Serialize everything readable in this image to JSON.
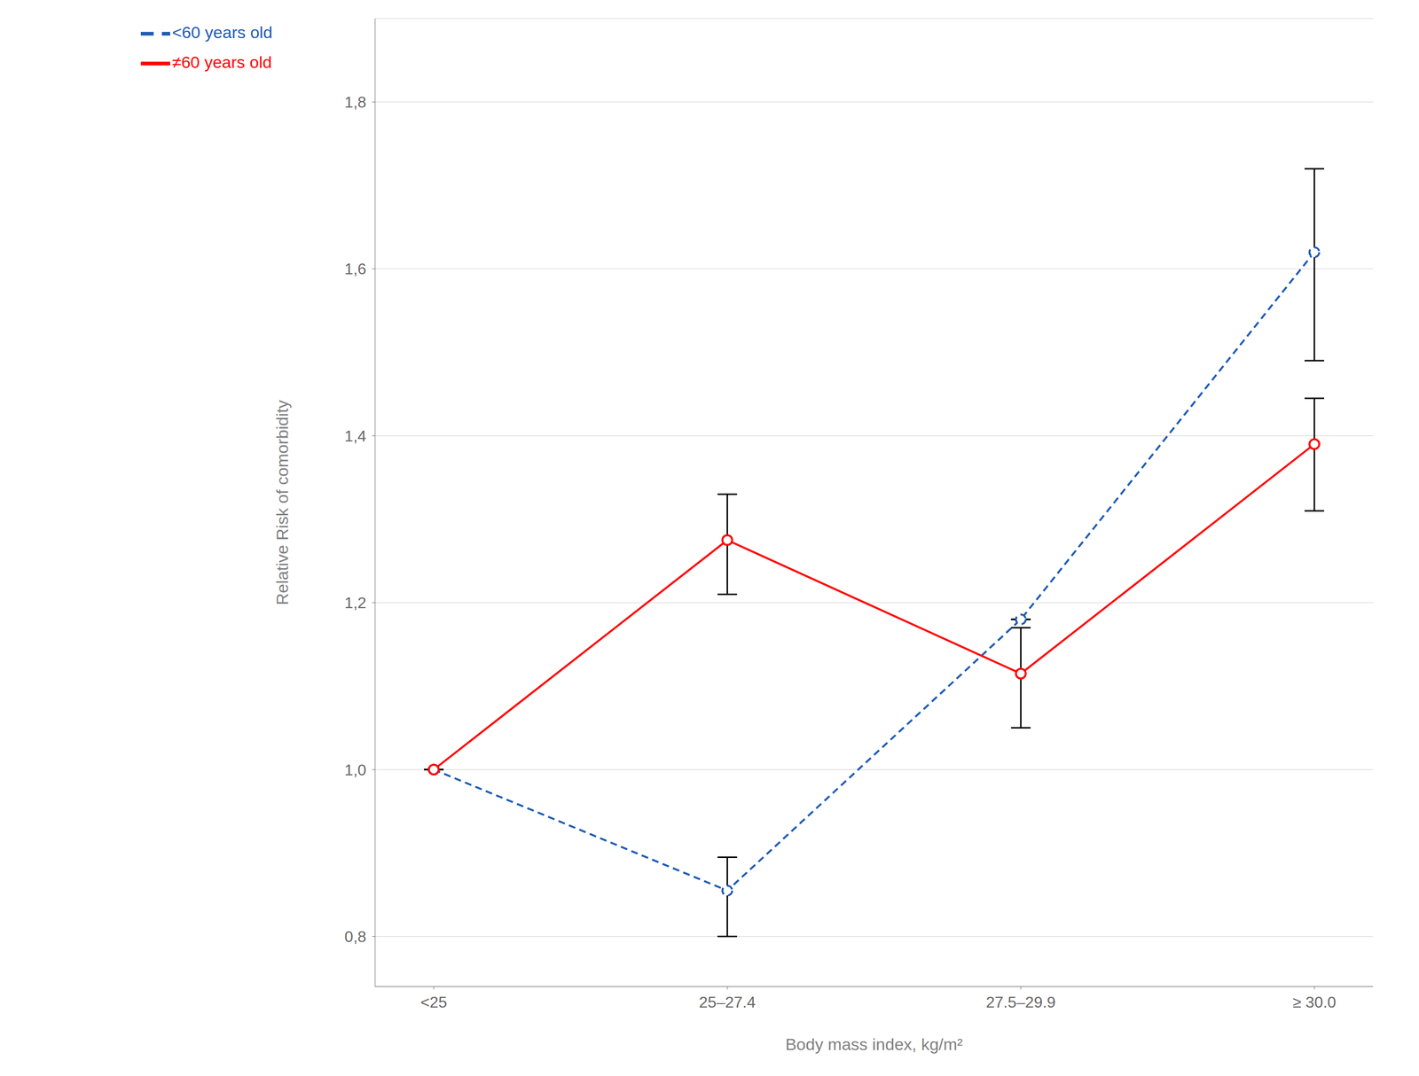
{
  "chart_data": {
    "type": "line",
    "categories": [
      "<25",
      "25–27.4",
      "27.5–29.9",
      "≥ 30.0"
    ],
    "series": [
      {
        "name": "<60 years old",
        "color": "#1F5BB5",
        "line_style": "dashed",
        "marker": "circle",
        "values": [
          1.0,
          0.855,
          1.18,
          1.62
        ],
        "yerr_low": [
          0.0,
          0.055,
          0.0,
          0.13
        ],
        "yerr_high": [
          0.0,
          0.04,
          0.0,
          0.1
        ]
      },
      {
        "name": "≠60 years old",
        "color": "#FF0000",
        "line_style": "solid",
        "marker": "circle",
        "values": [
          1.0,
          1.275,
          1.115,
          1.39
        ],
        "yerr_low": [
          0.0,
          0.065,
          0.065,
          0.08
        ],
        "yerr_high": [
          0.0,
          0.055,
          0.055,
          0.055
        ]
      }
    ],
    "xlabel": "Body mass index, kg/m²",
    "ylabel": "Relative Risk of comorbidity",
    "ylim": [
      0.74,
      1.9
    ],
    "yticks": [
      {
        "value": 0.8,
        "label": "0,8"
      },
      {
        "value": 1.0,
        "label": "1,0"
      },
      {
        "value": 1.2,
        "label": "1,2"
      },
      {
        "value": 1.4,
        "label": "1,4"
      },
      {
        "value": 1.6,
        "label": "1,6"
      },
      {
        "value": 1.8,
        "label": "1,8"
      }
    ],
    "grid": true,
    "legend": "upper left"
  }
}
